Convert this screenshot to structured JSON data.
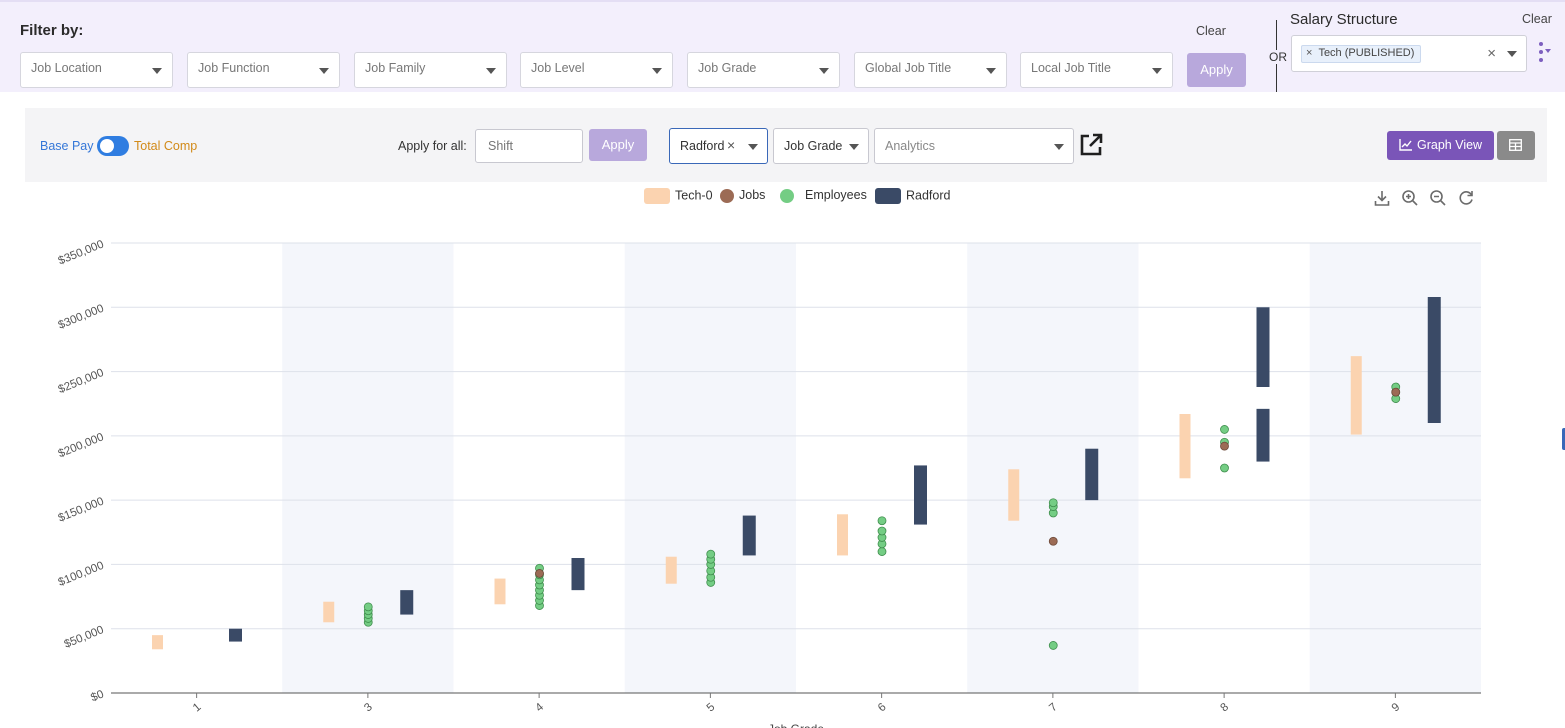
{
  "filters": {
    "title": "Filter by:",
    "dropdowns": [
      {
        "placeholder": "Job Location"
      },
      {
        "placeholder": "Job Function"
      },
      {
        "placeholder": "Job Family"
      },
      {
        "placeholder": "Job Level"
      },
      {
        "placeholder": "Job Grade"
      },
      {
        "placeholder": "Global Job Title"
      },
      {
        "placeholder": "Local Job Title"
      }
    ],
    "clear_label": "Clear",
    "apply_label": "Apply",
    "or_label": "OR"
  },
  "salary_structure": {
    "title": "Salary Structure",
    "clear_label": "Clear",
    "chip_label": "Tech (PUBLISHED)",
    "chip_remove": "×",
    "clear_icon": "×"
  },
  "toolbar": {
    "base_pay_label": "Base Pay",
    "total_comp_label": "Total Comp",
    "toggle_state": "base-pay",
    "apply_all_label": "Apply for all:",
    "shift_placeholder": "Shift",
    "apply_label": "Apply",
    "benchmark_value": "Radford",
    "benchmark_clear": "×",
    "group_by_value": "Job Grade",
    "analytics_placeholder": "Analytics",
    "graph_view_label": "Graph View"
  },
  "chart_data": {
    "type": "range-bar-scatter",
    "xlabel": "Job Grade",
    "categories": [
      "1",
      "3",
      "4",
      "5",
      "6",
      "7",
      "8",
      "9"
    ],
    "ylim": [
      0,
      350000
    ],
    "yticks": [
      0,
      50000,
      100000,
      150000,
      200000,
      250000,
      300000,
      350000
    ],
    "ytick_labels": [
      "$0",
      "$50,000",
      "$100,000",
      "$150,000",
      "$200,000",
      "$250,000",
      "$300,000",
      "$350,000"
    ],
    "legend": [
      {
        "name": "Tech-0",
        "color": "#fbd3b0",
        "shape": "bar"
      },
      {
        "name": "Jobs",
        "color": "#9c6b55",
        "shape": "dot"
      },
      {
        "name": "Employees",
        "color": "#74cd84",
        "shape": "dot"
      },
      {
        "name": "Radford",
        "color": "#3a4a66",
        "shape": "bar"
      }
    ],
    "tech0_ranges": [
      [
        34000,
        45000
      ],
      [
        55000,
        71000
      ],
      [
        69000,
        89000
      ],
      [
        85000,
        106000
      ],
      [
        107000,
        139000
      ],
      [
        134000,
        174000
      ],
      [
        167000,
        217000
      ],
      [
        201000,
        262000
      ]
    ],
    "radford_ranges": [
      [
        [
          40000,
          50000
        ]
      ],
      [
        [
          61000,
          80000
        ]
      ],
      [
        [
          80000,
          105000
        ]
      ],
      [
        [
          107000,
          138000
        ]
      ],
      [
        [
          131000,
          177000
        ]
      ],
      [
        [
          150000,
          190000
        ]
      ],
      [
        [
          180000,
          221000
        ],
        [
          238000,
          300000
        ]
      ],
      [
        [
          210000,
          308000
        ]
      ]
    ],
    "employees": [
      [],
      [
        55000,
        58000,
        61000,
        64000,
        67000
      ],
      [
        68000,
        72000,
        76000,
        80000,
        84000,
        88000,
        92000,
        97000
      ],
      [
        86000,
        90000,
        95000,
        100000,
        104000,
        108000
      ],
      [
        110000,
        116000,
        121000,
        126000,
        134000
      ],
      [
        37000,
        140000,
        145000,
        148000
      ],
      [
        175000,
        195000,
        205000
      ],
      [
        229000,
        234000,
        238000
      ]
    ],
    "jobs": [
      [],
      [],
      [
        93000
      ],
      [],
      [],
      [
        118000
      ],
      [
        192000
      ],
      [
        234000
      ]
    ]
  }
}
